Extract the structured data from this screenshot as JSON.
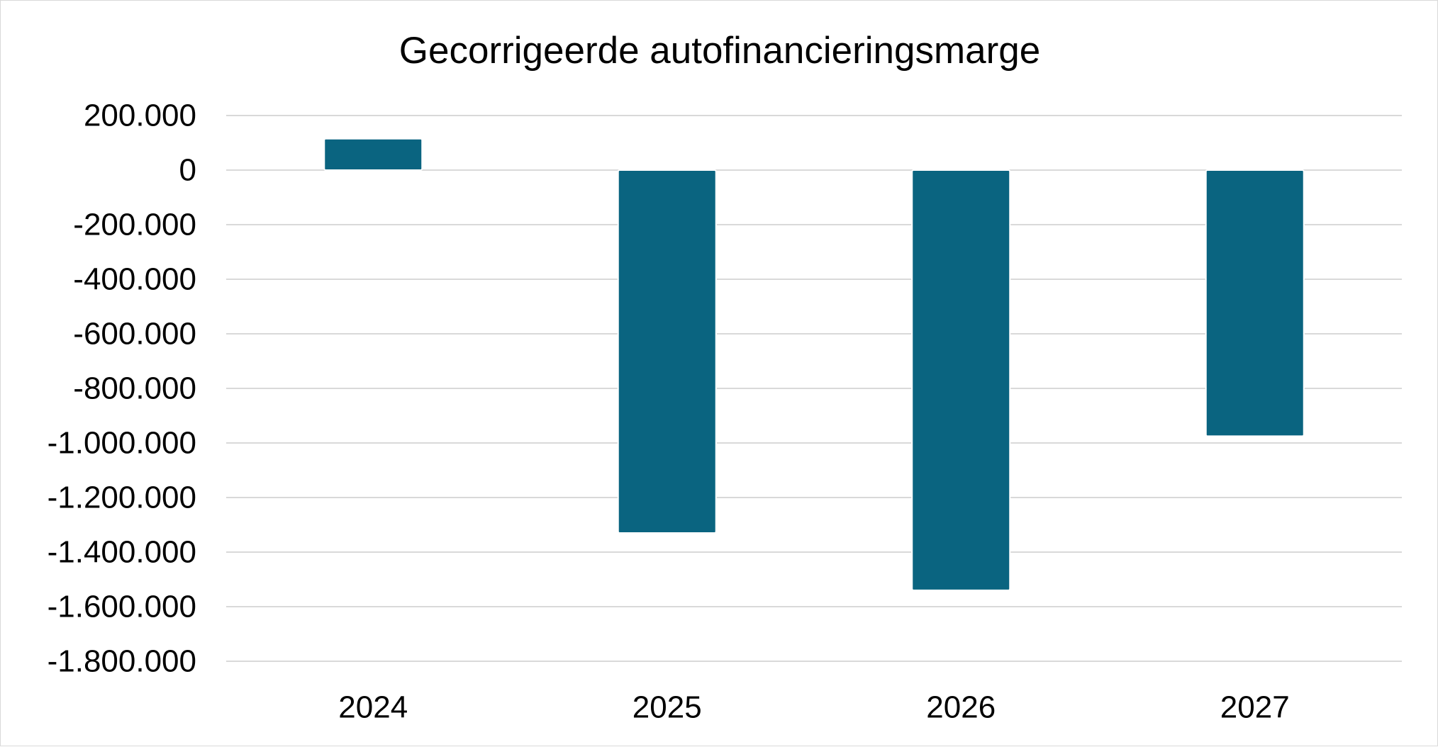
{
  "chart_data": {
    "type": "bar",
    "title": "Gecorrigeerde autofinancieringsmarge",
    "xlabel": "",
    "ylabel": "",
    "categories": [
      "2024",
      "2025",
      "2026",
      "2027"
    ],
    "series": [
      {
        "values": [
          115000,
          -1330000,
          -1540000,
          -975000
        ]
      }
    ],
    "ylim": [
      -1800000,
      200000
    ],
    "yticks": [
      200000,
      0,
      -200000,
      -400000,
      -600000,
      -800000,
      -1000000,
      -1200000,
      -1400000,
      -1600000,
      -1800000
    ],
    "ytick_labels": [
      "200.000",
      "0",
      "-200.000",
      "-400.000",
      "-600.000",
      "-800.000",
      "-1.000.000",
      "-1.200.000",
      "-1.400.000",
      "-1.600.000",
      "-1.800.000"
    ],
    "grid": true,
    "legend": "none",
    "colors": {
      "bar": "#0a6480",
      "grid": "#d9d9d9",
      "text": "#000000"
    }
  }
}
